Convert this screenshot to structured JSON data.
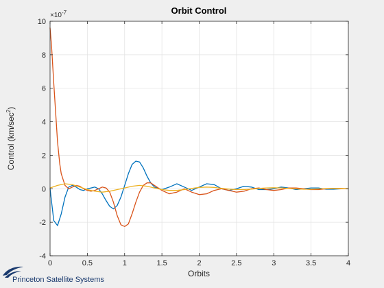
{
  "chart_data": {
    "type": "line",
    "title": "Orbit Control",
    "xlabel": "Orbits",
    "ylabel": "Control (km/sec",
    "ylabel_superscript": "2",
    "ylabel_close": ")",
    "y_exponent_prefix": "×10",
    "y_exponent": "-7",
    "xlim": [
      0,
      4
    ],
    "ylim": [
      -4,
      10
    ],
    "xticks": [
      0,
      0.5,
      1,
      1.5,
      2,
      2.5,
      3,
      3.5,
      4
    ],
    "xtick_labels": [
      "0",
      "0.5",
      "1",
      "1.5",
      "2",
      "2.5",
      "3",
      "3.5",
      "4"
    ],
    "yticks": [
      -4,
      -2,
      0,
      2,
      4,
      6,
      8,
      10
    ],
    "ytick_labels": [
      "-4",
      "-2",
      "0",
      "2",
      "4",
      "6",
      "8",
      "10"
    ],
    "grid": true,
    "series": [
      {
        "color": "#0072bd",
        "x": [
          0,
          0.05,
          0.1,
          0.15,
          0.2,
          0.25,
          0.3,
          0.35,
          0.4,
          0.45,
          0.5,
          0.55,
          0.6,
          0.65,
          0.7,
          0.75,
          0.8,
          0.85,
          0.9,
          0.95,
          1.0,
          1.05,
          1.1,
          1.15,
          1.2,
          1.25,
          1.3,
          1.35,
          1.4,
          1.5,
          1.6,
          1.7,
          1.8,
          1.9,
          2.0,
          2.1,
          2.2,
          2.3,
          2.4,
          2.5,
          2.6,
          2.7,
          2.8,
          2.9,
          3.0,
          3.1,
          3.2,
          3.3,
          3.4,
          3.5,
          3.6,
          3.7,
          3.8,
          3.9,
          4.0
        ],
        "y": [
          0,
          -1.9,
          -2.2,
          -1.5,
          -0.5,
          0.1,
          0.2,
          0.1,
          -0.05,
          -0.1,
          0.0,
          0.05,
          0.1,
          0.0,
          -0.3,
          -0.7,
          -1.05,
          -1.2,
          -1.0,
          -0.5,
          0.2,
          0.9,
          1.45,
          1.65,
          1.6,
          1.25,
          0.75,
          0.35,
          0.1,
          -0.05,
          0.1,
          0.3,
          0.1,
          -0.1,
          0.1,
          0.3,
          0.25,
          0.0,
          -0.1,
          0.0,
          0.15,
          0.1,
          -0.05,
          -0.05,
          0.0,
          0.1,
          0.05,
          -0.05,
          0.0,
          0.05,
          0.05,
          -0.03,
          -0.03,
          0.0,
          0.0
        ]
      },
      {
        "color": "#d95319",
        "x": [
          0,
          0.02,
          0.05,
          0.08,
          0.1,
          0.13,
          0.15,
          0.2,
          0.25,
          0.3,
          0.35,
          0.4,
          0.45,
          0.5,
          0.55,
          0.6,
          0.65,
          0.7,
          0.75,
          0.8,
          0.85,
          0.9,
          0.95,
          1.0,
          1.05,
          1.1,
          1.15,
          1.2,
          1.25,
          1.3,
          1.35,
          1.4,
          1.5,
          1.6,
          1.7,
          1.8,
          1.9,
          2.0,
          2.1,
          2.2,
          2.3,
          2.4,
          2.5,
          2.6,
          2.7,
          2.8,
          2.9,
          3.0,
          3.1,
          3.2,
          3.3,
          3.4,
          3.5,
          3.6,
          3.7,
          3.8,
          3.9,
          4.0
        ],
        "y": [
          9.6,
          8.5,
          6.3,
          4.2,
          2.8,
          1.5,
          0.9,
          0.2,
          0.0,
          0.1,
          0.2,
          0.15,
          0.0,
          -0.1,
          -0.15,
          -0.1,
          0.0,
          0.1,
          0.05,
          -0.2,
          -0.8,
          -1.6,
          -2.15,
          -2.25,
          -2.1,
          -1.5,
          -0.8,
          -0.2,
          0.2,
          0.35,
          0.35,
          0.2,
          -0.1,
          -0.3,
          -0.2,
          0.0,
          -0.2,
          -0.35,
          -0.3,
          -0.1,
          0.0,
          -0.1,
          -0.2,
          -0.15,
          0.0,
          0.05,
          -0.05,
          -0.1,
          -0.05,
          0.05,
          0.05,
          0.0,
          -0.05,
          -0.05,
          0.0,
          0.02,
          0.0,
          0.0
        ]
      },
      {
        "color": "#edb120",
        "x": [
          0,
          0.1,
          0.2,
          0.3,
          0.4,
          0.5,
          0.6,
          0.7,
          0.8,
          0.9,
          1.0,
          1.1,
          1.2,
          1.3,
          1.4,
          1.5,
          1.6,
          1.7,
          1.8,
          1.9,
          2.0,
          2.1,
          2.2,
          2.3,
          2.4,
          2.5,
          2.6,
          2.7,
          2.8,
          2.9,
          3.0,
          3.1,
          3.2,
          3.3,
          3.4,
          3.5,
          3.6,
          3.7,
          3.8,
          3.9,
          4.0
        ],
        "y": [
          0.05,
          0.2,
          0.3,
          0.25,
          0.1,
          -0.05,
          -0.15,
          -0.2,
          -0.15,
          -0.05,
          0.05,
          0.15,
          0.2,
          0.15,
          0.05,
          -0.05,
          -0.1,
          -0.1,
          -0.05,
          0.02,
          0.08,
          0.1,
          0.08,
          0.03,
          -0.02,
          -0.05,
          -0.05,
          -0.02,
          0.02,
          0.05,
          0.06,
          0.05,
          0.02,
          -0.01,
          -0.03,
          -0.03,
          -0.01,
          0.01,
          0.02,
          0.02,
          0.0
        ]
      }
    ]
  },
  "footer": {
    "company": "Princeton Satellite Systems"
  }
}
